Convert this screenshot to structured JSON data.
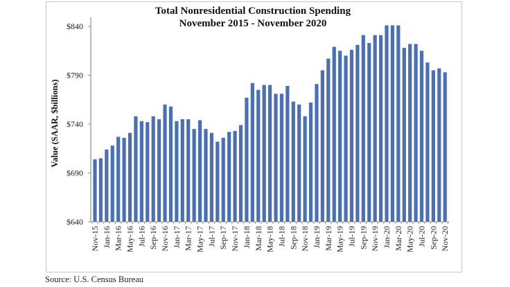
{
  "chart_data": {
    "type": "bar",
    "title": "Total Nonresidential Construction Spending",
    "subtitle": "November 2015 - November 2020",
    "xlabel": "",
    "ylabel": "Value (SAAR, $billions)",
    "ylim": [
      640,
      840
    ],
    "yticks": [
      640,
      690,
      740,
      790,
      840
    ],
    "ytick_labels": [
      "$640",
      "$690",
      "$740",
      "$790",
      "$840"
    ],
    "grid": false,
    "bar_color": "#4a6fb5",
    "x_tick_labels": [
      "Nov-15",
      "Jan-16",
      "Mar-16",
      "May-16",
      "Jul-16",
      "Sep-16",
      "Nov-16",
      "Jan-17",
      "Mar-17",
      "May-17",
      "Jul-17",
      "Sep-17",
      "Nov-17",
      "Jan-18",
      "Mar-18",
      "May-18",
      "Jul-18",
      "Sep-18",
      "Nov-18",
      "Jan-19",
      "Mar-19",
      "May-19",
      "Jul-19",
      "Sep-19",
      "Nov-19",
      "Jan-20",
      "Mar-20",
      "May-20",
      "Jul-20",
      "Sep-20",
      "Nov-20"
    ],
    "categories": [
      "Nov-15",
      "Dec-15",
      "Jan-16",
      "Feb-16",
      "Mar-16",
      "Apr-16",
      "May-16",
      "Jun-16",
      "Jul-16",
      "Aug-16",
      "Sep-16",
      "Oct-16",
      "Nov-16",
      "Dec-16",
      "Jan-17",
      "Feb-17",
      "Mar-17",
      "Apr-17",
      "May-17",
      "Jun-17",
      "Jul-17",
      "Aug-17",
      "Sep-17",
      "Oct-17",
      "Nov-17",
      "Dec-17",
      "Jan-18",
      "Feb-18",
      "Mar-18",
      "Apr-18",
      "May-18",
      "Jun-18",
      "Jul-18",
      "Aug-18",
      "Sep-18",
      "Oct-18",
      "Nov-18",
      "Dec-18",
      "Jan-19",
      "Feb-19",
      "Mar-19",
      "Apr-19",
      "May-19",
      "Jun-19",
      "Jul-19",
      "Aug-19",
      "Sep-19",
      "Oct-19",
      "Nov-19",
      "Dec-19",
      "Jan-20",
      "Feb-20",
      "Mar-20",
      "Apr-20",
      "May-20",
      "Jun-20",
      "Jul-20",
      "Aug-20",
      "Sep-20",
      "Oct-20",
      "Nov-20"
    ],
    "values": [
      704,
      705,
      714,
      718,
      727,
      726,
      731,
      748,
      743,
      742,
      748,
      745,
      760,
      758,
      743,
      745,
      745,
      735,
      744,
      735,
      731,
      722,
      726,
      732,
      733,
      739,
      767,
      782,
      775,
      780,
      780,
      771,
      771,
      779,
      763,
      760,
      748,
      762,
      781,
      795,
      807,
      819,
      815,
      810,
      816,
      821,
      831,
      823,
      831,
      831,
      841,
      841,
      841,
      818,
      822,
      822,
      815,
      803,
      795,
      797,
      793
    ]
  },
  "source": "Source:  U.S. Census Bureau"
}
